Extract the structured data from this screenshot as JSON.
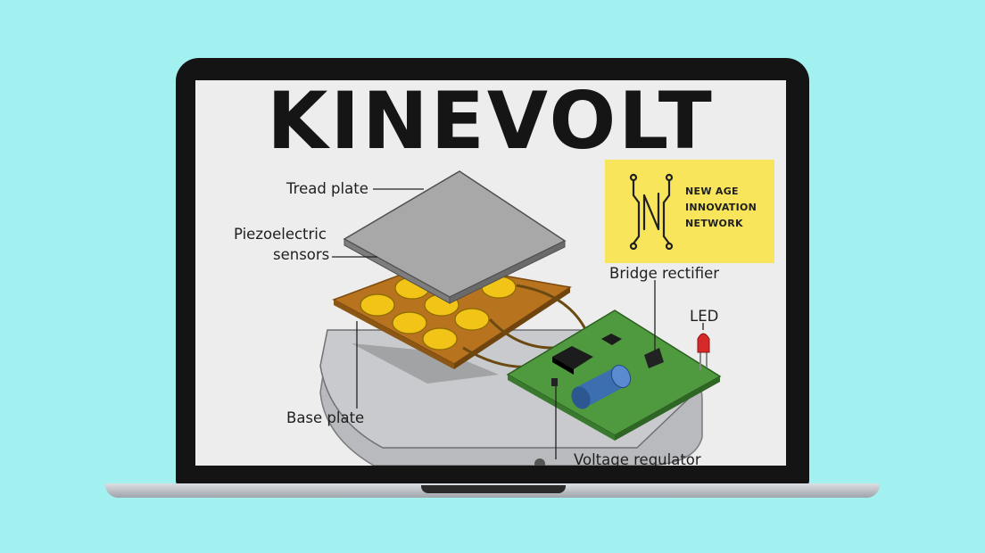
{
  "title": "KINEVOLT",
  "labels": {
    "tread_plate": "Tread plate",
    "piezo_line1": "Piezoelectric",
    "piezo_line2": "sensors",
    "base_plate": "Base plate",
    "bridge_rectifier": "Bridge rectifier",
    "led": "LED",
    "voltage_regulator": "Voltage regulator"
  },
  "logo": {
    "line1": "NEW AGE",
    "line2": "INNOVATION",
    "line3": "NETWORK",
    "background": "#f8e55c"
  },
  "colors": {
    "background": "#a3f0f0",
    "pcb": "#4f9a3f",
    "sensor_board": "#b8731f",
    "piezo_disc": "#f2c418",
    "tread": "#a8a8a8",
    "capacitor": "#3b6fb0",
    "led": "#d62a2a"
  }
}
